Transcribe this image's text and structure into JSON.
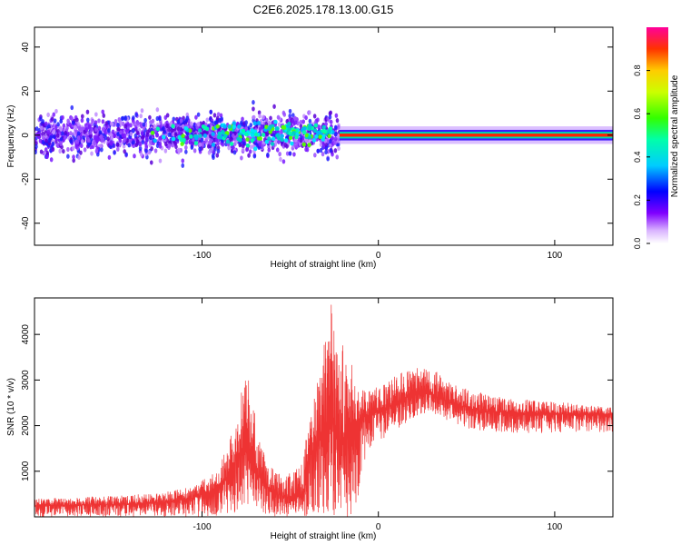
{
  "title": "C2E6.2025.178.13.00.G15",
  "colors": {
    "snr_line": "#ee3333",
    "scatter_low": "#e6ccff",
    "scatter_mid": "#6a00ee",
    "ridge_high": "#ff2200",
    "frame": "#000000"
  },
  "chart_data": [
    {
      "type": "heatmap",
      "title": "C2E6.2025.178.13.00.G15",
      "xlabel": "Height of straight line (km)",
      "ylabel": "Frequency (Hz)",
      "xlim": [
        -195,
        133
      ],
      "ylim": [
        -50,
        49
      ],
      "xticks": [
        -100,
        0,
        100
      ],
      "yticks": [
        -40,
        -20,
        0,
        20,
        40
      ],
      "xtick_labels": [
        "-100",
        "0",
        "100"
      ],
      "ytick_labels": [
        "-40",
        "-20",
        "0",
        "20",
        "40"
      ],
      "grid": false,
      "colorbar": {
        "label": "Normalized spectral amplitude",
        "range": [
          0,
          1
        ],
        "ticks": [
          0.0,
          0.2,
          0.4,
          0.6,
          0.8
        ],
        "tick_labels": [
          "0.0",
          "0.2",
          "0.4",
          "0.6",
          "0.8"
        ],
        "colormap": "rainbow (light purple → red)"
      },
      "features": [
        {
          "region": "noisy scatter",
          "x_range": [
            -195,
            -105
          ],
          "freq_range": [
            -50,
            49
          ],
          "amplitude": "low"
        },
        {
          "region": "noisy scatter band",
          "x_range": [
            -73,
            -45
          ],
          "freq_range": [
            -50,
            49
          ],
          "amplitude": "low"
        },
        {
          "region": "broad signal band",
          "x_range": [
            -195,
            -22
          ],
          "freq_center": 0,
          "freq_halfwidth": 6,
          "amplitude": "low-mid"
        },
        {
          "region": "clustered peaks",
          "x_range": [
            -130,
            -25
          ],
          "freq_center": 1,
          "amplitude": "0.3-0.6"
        },
        {
          "region": "narrow signal ridge",
          "x_range": [
            -22,
            133
          ],
          "freq_center": 0,
          "freq_halfwidth": 2,
          "amplitude": "0.7-1.0"
        }
      ]
    },
    {
      "type": "line",
      "xlabel": "Height of straight line (km)",
      "ylabel": "SNR (10 * v/v)",
      "xlim": [
        -195,
        133
      ],
      "ylim": [
        0,
        4800
      ],
      "xticks": [
        -100,
        0,
        100
      ],
      "yticks": [
        1000,
        2000,
        3000,
        4000
      ],
      "xtick_labels": [
        "-100",
        "0",
        "100"
      ],
      "ytick_labels": [
        "1000",
        "2000",
        "3000",
        "4000"
      ],
      "grid": false,
      "series": [
        {
          "x": [
            -195,
            -180,
            -160,
            -140,
            -120,
            -105,
            -95,
            -90,
            -85,
            -80,
            -76,
            -72,
            -68,
            -63,
            -58,
            -53,
            -48,
            -43,
            -38,
            -33,
            -29,
            -26,
            -24,
            -22,
            -20,
            -18,
            -16,
            -13,
            -10,
            -8,
            -5,
            0,
            5,
            10,
            15,
            20,
            25,
            30,
            35,
            40,
            45,
            50,
            55,
            60,
            70,
            80,
            90,
            100,
            110,
            120,
            133
          ],
          "min": [
            0,
            0,
            0,
            0,
            0,
            0,
            0,
            0,
            0,
            100,
            200,
            150,
            100,
            50,
            0,
            0,
            0,
            0,
            0,
            0,
            0,
            0,
            0,
            0,
            0,
            0,
            0,
            0,
            500,
            1200,
            1400,
            1600,
            1800,
            1900,
            2050,
            2150,
            2250,
            2300,
            2200,
            2100,
            2000,
            1950,
            1900,
            1880,
            1850,
            1830,
            1830,
            1840,
            1850,
            1850,
            1850
          ],
          "max": [
            400,
            420,
            450,
            480,
            550,
            700,
            900,
            1200,
            1600,
            2200,
            3300,
            2800,
            1800,
            1200,
            1000,
            900,
            1000,
            1200,
            2600,
            3300,
            4200,
            4900,
            4300,
            3200,
            3900,
            3300,
            3500,
            3000,
            2800,
            2800,
            2800,
            2850,
            2950,
            3100,
            3200,
            3250,
            3300,
            3250,
            3150,
            3000,
            2900,
            2850,
            2800,
            2750,
            2650,
            2600,
            2550,
            2520,
            2500,
            2450,
            2400
          ],
          "mean": [
            250,
            250,
            270,
            280,
            330,
            420,
            550,
            700,
            900,
            1300,
            1500,
            1300,
            900,
            650,
            500,
            450,
            430,
            500,
            1400,
            1700,
            2000,
            2200,
            1800,
            1500,
            1700,
            1900,
            2000,
            2100,
            2150,
            2200,
            2250,
            2300,
            2400,
            2500,
            2600,
            2700,
            2750,
            2700,
            2600,
            2500,
            2450,
            2400,
            2350,
            2320,
            2300,
            2280,
            2270,
            2260,
            2250,
            2250,
            2250
          ]
        }
      ]
    }
  ]
}
